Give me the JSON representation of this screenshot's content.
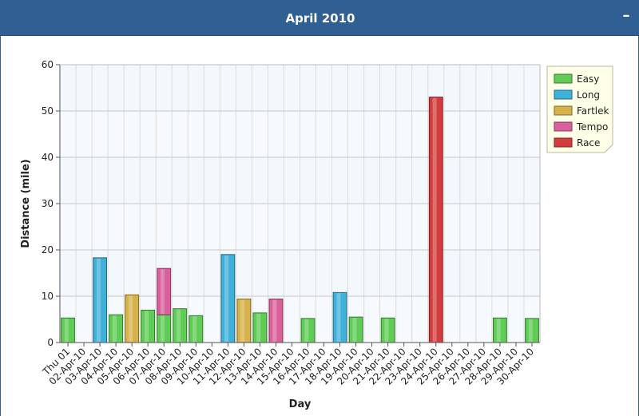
{
  "panel": {
    "title": "April 2010",
    "collapse_label": "–"
  },
  "chart_data": {
    "type": "bar",
    "stacked": true,
    "xlabel": "Day",
    "ylabel": "Distance (mile)",
    "ylim": [
      0,
      60
    ],
    "yticks": [
      0,
      10,
      20,
      30,
      40,
      50,
      60
    ],
    "categories": [
      "Thu 01",
      "02-Apr-10",
      "03-Apr-10",
      "04-Apr-10",
      "05-Apr-10",
      "06-Apr-10",
      "07-Apr-10",
      "08-Apr-10",
      "09-Apr-10",
      "10-Apr-10",
      "11-Apr-10",
      "12-Apr-10",
      "13-Apr-10",
      "14-Apr-10",
      "15-Apr-10",
      "16-Apr-10",
      "17-Apr-10",
      "18-Apr-10",
      "19-Apr-10",
      "20-Apr-10",
      "21-Apr-10",
      "22-Apr-10",
      "23-Apr-10",
      "24-Apr-10",
      "25-Apr-10",
      "26-Apr-10",
      "27-Apr-10",
      "28-Apr-10",
      "29-Apr-10",
      "30-Apr-10"
    ],
    "series": [
      {
        "name": "Easy",
        "color": "#5fcc55",
        "values": [
          5.3,
          0,
          0,
          6.0,
          0,
          7.0,
          6.0,
          7.3,
          5.8,
          0,
          0,
          0,
          6.4,
          0,
          0,
          5.2,
          0,
          0,
          5.5,
          0,
          5.3,
          0,
          0,
          0,
          0,
          0,
          0,
          5.3,
          0,
          5.2
        ]
      },
      {
        "name": "Long",
        "color": "#3fb0d8",
        "values": [
          0,
          0,
          18.3,
          0,
          0,
          0,
          0,
          0,
          0,
          0,
          19.0,
          0,
          0,
          0,
          0,
          0,
          0,
          10.8,
          0,
          0,
          0,
          0,
          0,
          0,
          0,
          0,
          0,
          0,
          0,
          0
        ]
      },
      {
        "name": "Fartlek",
        "color": "#d7b24a",
        "values": [
          0,
          0,
          0,
          0,
          10.3,
          0,
          0,
          0,
          0,
          0,
          0,
          9.4,
          0,
          0,
          0,
          0,
          0,
          0,
          0,
          0,
          0,
          0,
          0,
          0,
          0,
          0,
          0,
          0,
          0,
          0
        ]
      },
      {
        "name": "Tempo",
        "color": "#d9609a",
        "values": [
          0,
          0,
          0,
          0,
          0,
          0,
          10.0,
          0,
          0,
          0,
          0,
          0,
          0,
          9.4,
          0,
          0,
          0,
          0,
          0,
          0,
          0,
          0,
          0,
          0,
          0,
          0,
          0,
          0,
          0,
          0
        ]
      },
      {
        "name": "Race",
        "color": "#d33c3c",
        "values": [
          0,
          0,
          0,
          0,
          0,
          0,
          0,
          0,
          0,
          0,
          0,
          0,
          0,
          0,
          0,
          0,
          0,
          0,
          0,
          0,
          0,
          0,
          0,
          53.0,
          0,
          0,
          0,
          0,
          0,
          0
        ]
      }
    ],
    "grid": true,
    "legend_position": "top-right"
  }
}
